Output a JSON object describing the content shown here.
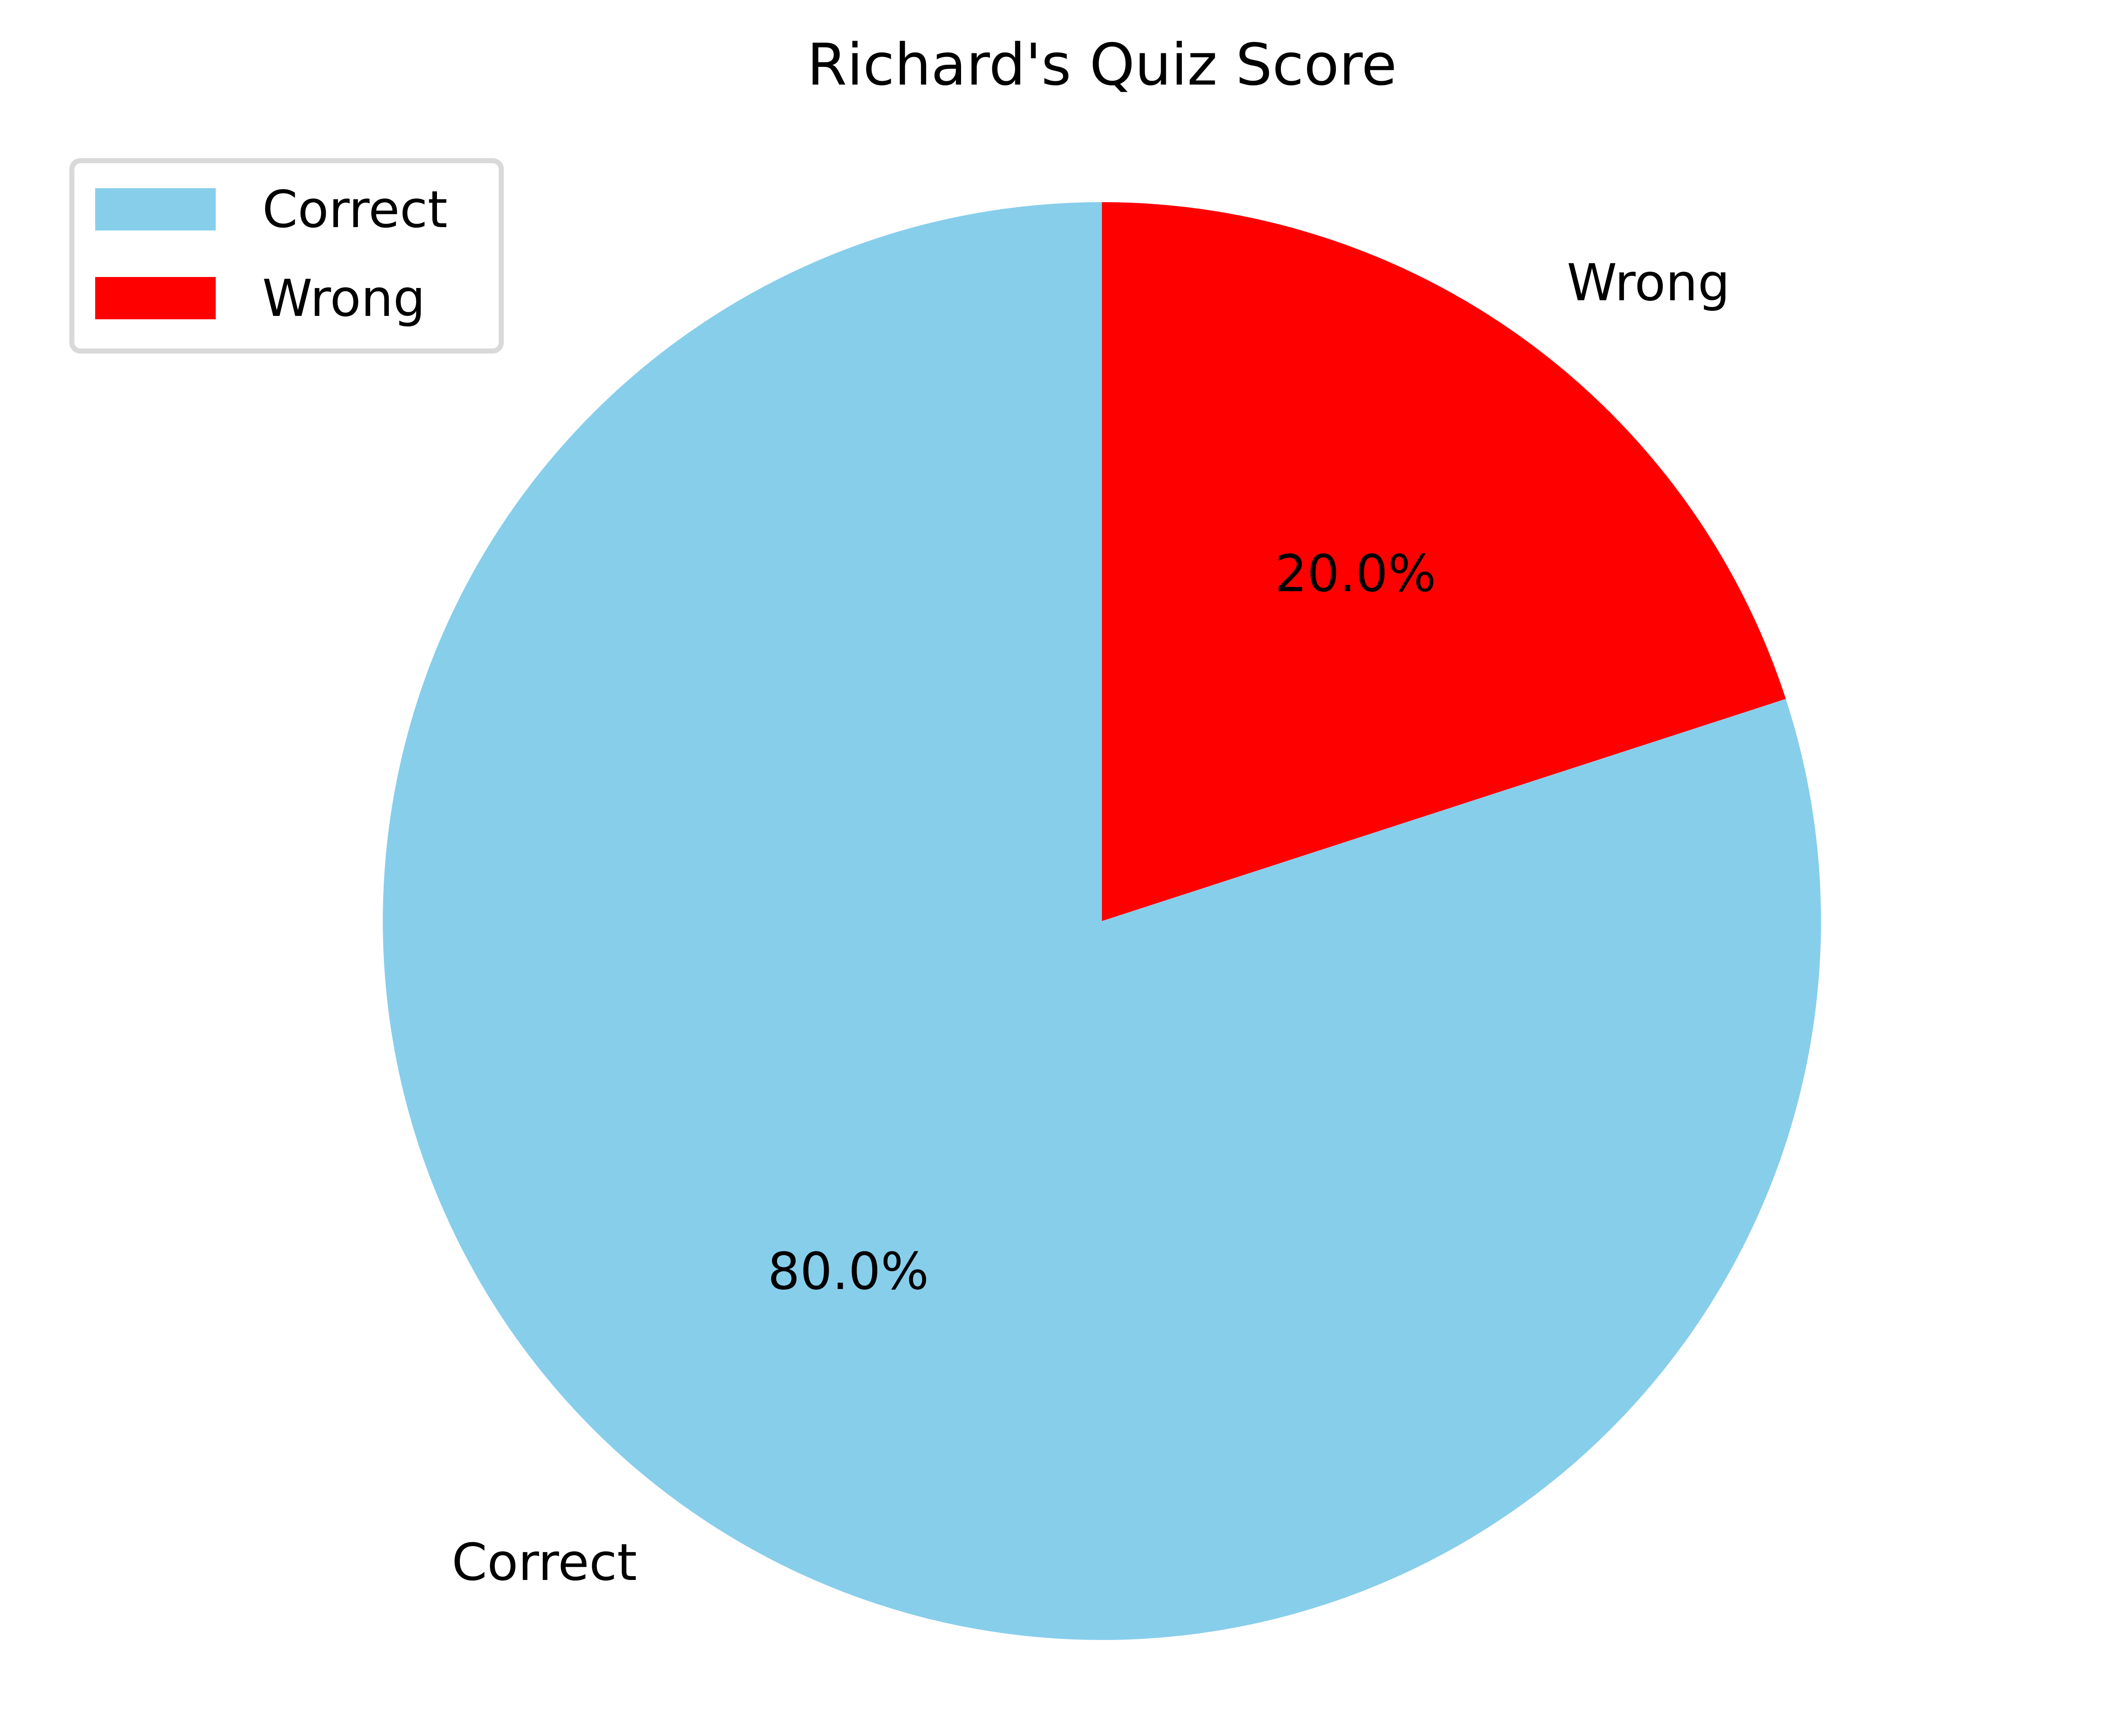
{
  "chart_data": {
    "type": "pie",
    "title": "Richard's Quiz Score",
    "labels": [
      "Correct",
      "Wrong"
    ],
    "values": [
      80.0,
      20.0
    ],
    "percent_labels": [
      "80.0%",
      "20.0%"
    ],
    "colors": [
      "#87CEEB",
      "#FF0000"
    ],
    "start_angle_deg": 90,
    "direction": "clockwise",
    "legend": {
      "placement": "top-left",
      "entries": [
        "Correct",
        "Wrong"
      ]
    }
  }
}
